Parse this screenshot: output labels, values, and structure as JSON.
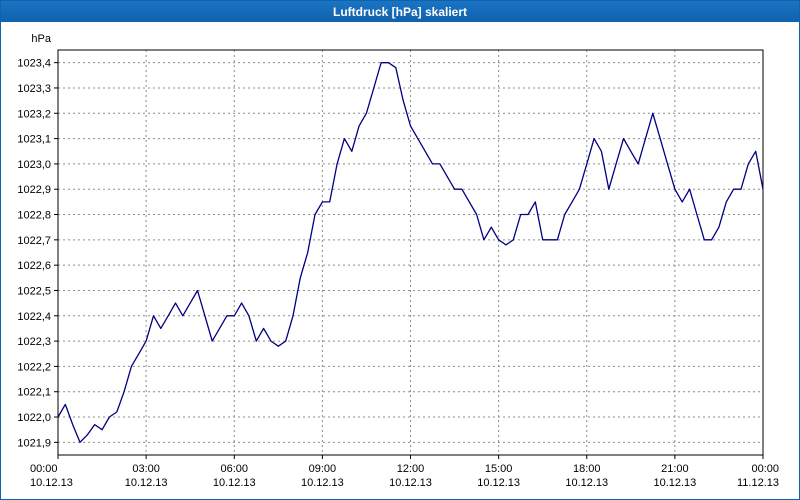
{
  "window": {
    "title": "Luftdruck [hPa] skaliert"
  },
  "chart_data": {
    "type": "line",
    "title": "Luftdruck [hPa] skaliert",
    "ylabel": "hPa",
    "series_color": "#000080",
    "grid": true,
    "legend": "none",
    "xlim": [
      0,
      24
    ],
    "ylim": [
      1021.85,
      1023.45
    ],
    "yticks": [
      1021.9,
      1022.0,
      1022.1,
      1022.2,
      1022.3,
      1022.4,
      1022.5,
      1022.6,
      1022.7,
      1022.8,
      1022.9,
      1023.0,
      1023.1,
      1023.2,
      1023.3,
      1023.4
    ],
    "ytick_labels": [
      "1021,9",
      "1022,0",
      "1022,1",
      "1022,2",
      "1022,3",
      "1022,4",
      "1022,5",
      "1022,6",
      "1022,7",
      "1022,8",
      "1022,9",
      "1023,0",
      "1023,1",
      "1023,2",
      "1023,3",
      "1023,4"
    ],
    "xticks": [
      0,
      3,
      6,
      9,
      12,
      15,
      18,
      21,
      24
    ],
    "xtick_labels": [
      {
        "time": "00:00",
        "date": "10.12.13"
      },
      {
        "time": "03:00",
        "date": "10.12.13"
      },
      {
        "time": "06:00",
        "date": "10.12.13"
      },
      {
        "time": "09:00",
        "date": "10.12.13"
      },
      {
        "time": "12:00",
        "date": "10.12.13"
      },
      {
        "time": "15:00",
        "date": "10.12.13"
      },
      {
        "time": "18:00",
        "date": "10.12.13"
      },
      {
        "time": "21:00",
        "date": "10.12.13"
      },
      {
        "time": "00:00",
        "date": "11.12.13"
      }
    ],
    "x": [
      0,
      0.25,
      0.5,
      0.75,
      1,
      1.25,
      1.5,
      1.75,
      2,
      2.25,
      2.5,
      2.75,
      3,
      3.25,
      3.5,
      3.75,
      4,
      4.25,
      4.5,
      4.75,
      5,
      5.25,
      5.5,
      5.75,
      6,
      6.25,
      6.5,
      6.75,
      7,
      7.25,
      7.5,
      7.75,
      8,
      8.25,
      8.5,
      8.75,
      9,
      9.25,
      9.5,
      9.75,
      10,
      10.25,
      10.5,
      10.75,
      11,
      11.25,
      11.5,
      11.75,
      12,
      12.25,
      12.5,
      12.75,
      13,
      13.25,
      13.5,
      13.75,
      14,
      14.25,
      14.5,
      14.75,
      15,
      15.25,
      15.5,
      15.75,
      16,
      16.25,
      16.5,
      16.75,
      17,
      17.25,
      17.5,
      17.75,
      18,
      18.25,
      18.5,
      18.75,
      19,
      19.25,
      19.5,
      19.75,
      20,
      20.25,
      20.5,
      20.75,
      21,
      21.25,
      21.5,
      21.75,
      22,
      22.25,
      22.5,
      22.75,
      23,
      23.25,
      23.5,
      23.75,
      24
    ],
    "values": [
      1022.0,
      1022.05,
      1021.97,
      1021.9,
      1021.93,
      1021.97,
      1021.95,
      1022.0,
      1022.02,
      1022.1,
      1022.2,
      1022.25,
      1022.3,
      1022.4,
      1022.35,
      1022.4,
      1022.45,
      1022.4,
      1022.45,
      1022.5,
      1022.4,
      1022.3,
      1022.35,
      1022.4,
      1022.4,
      1022.45,
      1022.4,
      1022.3,
      1022.35,
      1022.3,
      1022.28,
      1022.3,
      1022.4,
      1022.55,
      1022.65,
      1022.8,
      1022.85,
      1022.85,
      1023.0,
      1023.1,
      1023.05,
      1023.15,
      1023.2,
      1023.3,
      1023.4,
      1023.4,
      1023.38,
      1023.25,
      1023.15,
      1023.1,
      1023.05,
      1023.0,
      1023.0,
      1022.95,
      1022.9,
      1022.9,
      1022.85,
      1022.8,
      1022.7,
      1022.75,
      1022.7,
      1022.68,
      1022.7,
      1022.8,
      1022.8,
      1022.85,
      1022.7,
      1022.7,
      1022.7,
      1022.8,
      1022.85,
      1022.9,
      1023.0,
      1023.1,
      1023.05,
      1022.9,
      1023.0,
      1023.1,
      1023.05,
      1023.0,
      1023.1,
      1023.2,
      1023.1,
      1023.0,
      1022.9,
      1022.85,
      1022.9,
      1022.8,
      1022.7,
      1022.7,
      1022.75,
      1022.85,
      1022.9,
      1022.9,
      1023.0,
      1023.05,
      1022.9
    ]
  }
}
